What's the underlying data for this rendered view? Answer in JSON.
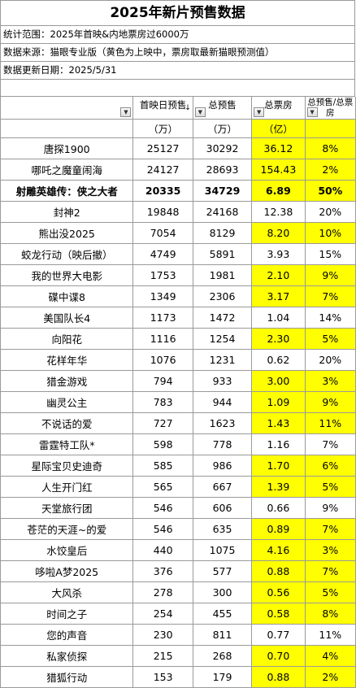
{
  "title": "2025年新片预售数据",
  "info": {
    "scope": "统计范围：2025年首映&内地票房过6000万",
    "source": "数据来源：猫眼专业版（黄色为上映中，票房取最新猫眼预测值）",
    "updated": "数据更新日期：2025/5/31"
  },
  "headers": {
    "opening_presale": "首映日预售",
    "total_presale": "总预售",
    "box_office": "总票房",
    "ratio": "总预售/总票房"
  },
  "units": {
    "opening_presale": "（万）",
    "total_presale": "（万）",
    "box_office": "（亿）"
  },
  "icons": {
    "dropdown": "dropdown-arrow-icon",
    "sort": "sort-descending-icon"
  },
  "colors": {
    "highlight": "#ffff00"
  },
  "rows": [
    {
      "name": "唐探1900",
      "opening": "25127",
      "total": "30292",
      "box": "36.12",
      "ratio": "8%",
      "showing": true,
      "bold": false
    },
    {
      "name": "哪吒之魔童闹海",
      "opening": "24127",
      "total": "28693",
      "box": "154.43",
      "ratio": "2%",
      "showing": true,
      "bold": false
    },
    {
      "name": "射雕英雄传：侠之大者",
      "opening": "20335",
      "total": "34729",
      "box": "6.89",
      "ratio": "50%",
      "showing": true,
      "bold": true
    },
    {
      "name": "封神2",
      "opening": "19848",
      "total": "24168",
      "box": "12.38",
      "ratio": "20%",
      "showing": false,
      "bold": false
    },
    {
      "name": "熊出没2025",
      "opening": "7054",
      "total": "8129",
      "box": "8.20",
      "ratio": "10%",
      "showing": true,
      "bold": false
    },
    {
      "name": "蛟龙行动（映后撤）",
      "opening": "4749",
      "total": "5891",
      "box": "3.93",
      "ratio": "15%",
      "showing": false,
      "bold": false
    },
    {
      "name": "我的世界大电影",
      "opening": "1753",
      "total": "1981",
      "box": "2.10",
      "ratio": "9%",
      "showing": true,
      "bold": false
    },
    {
      "name": "碟中谍8",
      "opening": "1349",
      "total": "2306",
      "box": "3.17",
      "ratio": "7%",
      "showing": true,
      "bold": false
    },
    {
      "name": "美国队长4",
      "opening": "1173",
      "total": "1472",
      "box": "1.04",
      "ratio": "14%",
      "showing": false,
      "bold": false
    },
    {
      "name": "向阳花",
      "opening": "1116",
      "total": "1254",
      "box": "2.30",
      "ratio": "5%",
      "showing": true,
      "bold": false
    },
    {
      "name": "花样年华",
      "opening": "1076",
      "total": "1231",
      "box": "0.62",
      "ratio": "20%",
      "showing": false,
      "bold": false
    },
    {
      "name": "猎金游戏",
      "opening": "794",
      "total": "933",
      "box": "3.00",
      "ratio": "3%",
      "showing": true,
      "bold": false
    },
    {
      "name": "幽灵公主",
      "opening": "783",
      "total": "944",
      "box": "1.09",
      "ratio": "9%",
      "showing": true,
      "bold": false
    },
    {
      "name": "不说话的爱",
      "opening": "727",
      "total": "1623",
      "box": "1.43",
      "ratio": "11%",
      "showing": true,
      "bold": false
    },
    {
      "name": "雷霆特工队*",
      "opening": "598",
      "total": "778",
      "box": "1.16",
      "ratio": "7%",
      "showing": false,
      "bold": false
    },
    {
      "name": "星际宝贝史迪奇",
      "opening": "585",
      "total": "986",
      "box": "1.70",
      "ratio": "6%",
      "showing": true,
      "bold": false
    },
    {
      "name": "人生开门红",
      "opening": "565",
      "total": "667",
      "box": "1.39",
      "ratio": "5%",
      "showing": true,
      "bold": false
    },
    {
      "name": "天堂旅行团",
      "opening": "546",
      "total": "606",
      "box": "0.66",
      "ratio": "9%",
      "showing": false,
      "bold": false
    },
    {
      "name": "苍茫的天涯~的爱",
      "opening": "546",
      "total": "635",
      "box": "0.89",
      "ratio": "7%",
      "showing": true,
      "bold": false
    },
    {
      "name": "水饺皇后",
      "opening": "440",
      "total": "1075",
      "box": "4.16",
      "ratio": "3%",
      "showing": true,
      "bold": false
    },
    {
      "name": "哆啦A梦2025",
      "opening": "376",
      "total": "577",
      "box": "0.88",
      "ratio": "7%",
      "showing": true,
      "bold": false
    },
    {
      "name": "大风杀",
      "opening": "278",
      "total": "300",
      "box": "0.56",
      "ratio": "5%",
      "showing": true,
      "bold": false
    },
    {
      "name": "时间之子",
      "opening": "254",
      "total": "455",
      "box": "0.58",
      "ratio": "8%",
      "showing": true,
      "bold": false
    },
    {
      "name": "您的声音",
      "opening": "230",
      "total": "811",
      "box": "0.77",
      "ratio": "11%",
      "showing": false,
      "bold": false
    },
    {
      "name": "私家侦探",
      "opening": "215",
      "total": "268",
      "box": "0.70",
      "ratio": "4%",
      "showing": true,
      "bold": false
    },
    {
      "name": "猎狐行动",
      "opening": "153",
      "total": "179",
      "box": "0.88",
      "ratio": "2%",
      "showing": true,
      "bold": false
    }
  ]
}
